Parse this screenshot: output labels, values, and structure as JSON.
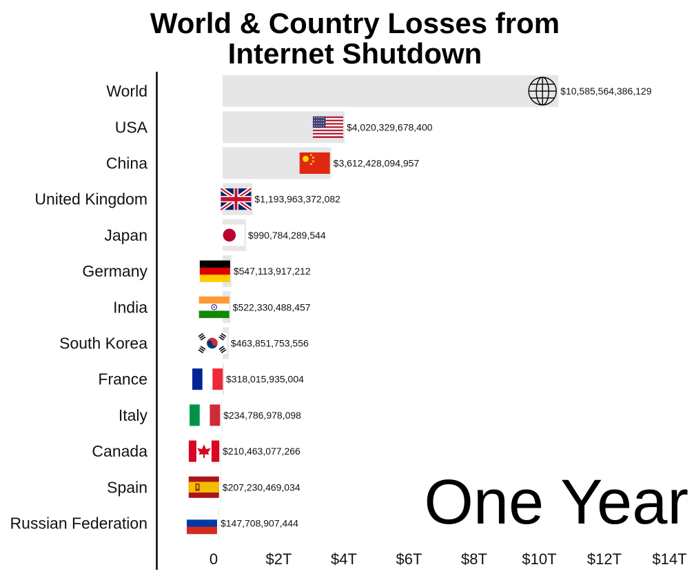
{
  "chart_data": {
    "type": "bar",
    "orientation": "horizontal",
    "title_lines": [
      "World & Country Losses from",
      "Internet Shutdown"
    ],
    "period_label": "One Year",
    "categories": [
      "World",
      "USA",
      "China",
      "United Kingdom",
      "Japan",
      "Germany",
      "India",
      "South Korea",
      "France",
      "Italy",
      "Canada",
      "Spain",
      "Russian Federation"
    ],
    "values": [
      10585564386129,
      4020329678400,
      3612428094957,
      1193963372082,
      990784289544,
      547113917212,
      522330488457,
      463851753556,
      318015935004,
      234786978098,
      210463077266,
      207230469034,
      147708907444
    ],
    "value_labels": [
      "$10,585,564,386,129",
      "$4,020,329,678,400",
      "$3,612,428,094,957",
      "$1,193,963,372,082",
      "$990,784,289,544",
      "$547,113,917,212",
      "$522,330,488,457",
      "$463,851,753,556",
      "$318,015,935,004",
      "$234,786,978,098",
      "$210,463,077,266",
      "$207,230,469,034",
      "$147,708,907,444"
    ],
    "icons": [
      "globe-icon",
      "us-flag-icon",
      "china-flag-icon",
      "uk-flag-icon",
      "japan-flag-icon",
      "germany-flag-icon",
      "india-flag-icon",
      "south-korea-flag-icon",
      "france-flag-icon",
      "italy-flag-icon",
      "canada-flag-icon",
      "spain-flag-icon",
      "russia-flag-icon"
    ],
    "xticks": [
      0,
      2000000000000,
      4000000000000,
      6000000000000,
      8000000000000,
      10000000000000,
      12000000000000,
      14000000000000
    ],
    "xtick_labels": [
      "0",
      "$2T",
      "$4T",
      "$6T",
      "$8T",
      "$10T",
      "$12T",
      "$14T"
    ],
    "xlim": [
      0,
      14000000000000
    ],
    "grid": false,
    "legend": "none",
    "colors": {
      "bar": "#e6e6e6",
      "axis": "#000000",
      "text": "#111111"
    }
  }
}
